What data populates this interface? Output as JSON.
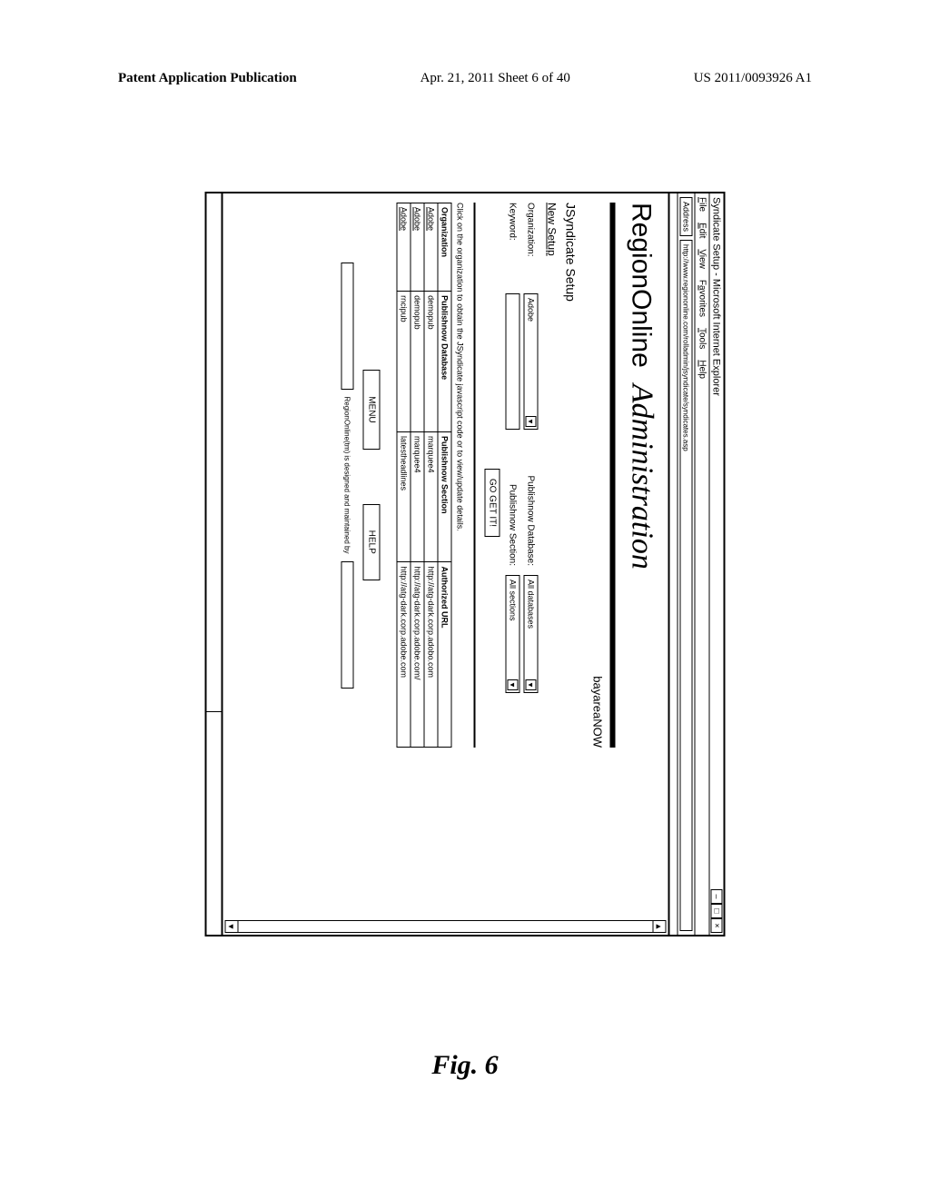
{
  "page_header": {
    "left": "Patent Application Publication",
    "center": "Apr. 21, 2011  Sheet 6 of 40",
    "right": "US 2011/0093926 A1"
  },
  "figure_label": "Fig. 6",
  "browser": {
    "title": "Syndicate Setup - Microsoft Internet Explorer",
    "menus": [
      "File",
      "Edit",
      "View",
      "Favorites",
      "Tools",
      "Help"
    ],
    "address_label": "Address",
    "address_url": "http://www.regiononline.com/rolladmin/jsyndicate/syndicates.asp",
    "win_buttons": [
      "–",
      "□",
      "×"
    ],
    "scroll_up": "▲",
    "scroll_down": "▼"
  },
  "banner": {
    "brand": "RegionOnline",
    "title": "Administration",
    "subright": "bayareaNOW"
  },
  "sections": {
    "jsyndicate": "JSyndicate Setup",
    "new_setup": "New Setup"
  },
  "form": {
    "org_label": "Organization:",
    "org_value": "Adobe",
    "kw_label": "Keyword:",
    "db_label": "Publishnow Database:",
    "db_value": "All databases",
    "sec_label": "Publishnow Section:",
    "sec_value": "All sections",
    "go_label": "GO GET IT!",
    "dropdown_arrow": "▼"
  },
  "caption": "Click on the organization to obtain the JSyndicate javascript code or to view/update details.",
  "table": {
    "headers": [
      "Organization",
      "Publishnow Database",
      "Publishnow Section",
      "Authorized URL"
    ],
    "rows": [
      [
        "Adobe",
        "demopub",
        "marquee4",
        "http://atg-dark.corp.adobo.com"
      ],
      [
        "Adobe",
        "demopub",
        "marquee4",
        "http://atg-dark.corp.adobe.com/"
      ],
      [
        "Adobe",
        "rncipub",
        "latestheadlines",
        "http://atg-dark.corp.adobe.com"
      ]
    ]
  },
  "footer": {
    "menu_btn": "MENU",
    "help_btn": "HELP",
    "credit": "RegionOnline(tm) is designed and maintained by"
  },
  "colors": {
    "border": "#000000",
    "background": "#ffffff",
    "text": "#000000"
  }
}
